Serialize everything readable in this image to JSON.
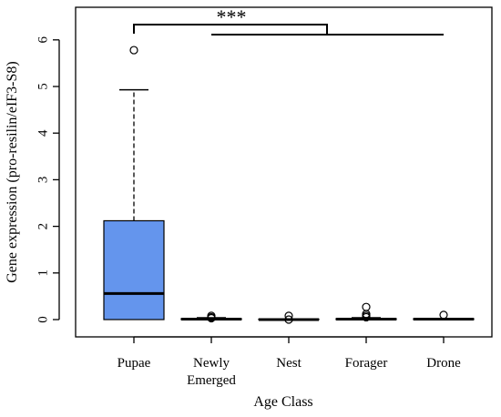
{
  "chart_data": {
    "type": "boxplot",
    "title": "",
    "xlabel": "Age Class",
    "ylabel": "Gene expression (pro-resilin/eIF3-S8)",
    "ylim": [
      -0.2,
      6.5
    ],
    "yticks": [
      0,
      1,
      2,
      3,
      4,
      5,
      6
    ],
    "box_color": "#6495ED",
    "grid": false,
    "categories": [
      {
        "label": [
          "Pupae"
        ],
        "min": 0.0,
        "q1": 0.0,
        "median": 0.56,
        "q3": 2.12,
        "max": 4.93,
        "outliers": [
          5.78
        ]
      },
      {
        "label": [
          "Newly",
          "Emerged"
        ],
        "min": 0.0,
        "q1": 0.0,
        "median": 0.01,
        "q3": 0.02,
        "max": 0.04,
        "outliers": [
          0.03,
          0.05,
          0.08
        ]
      },
      {
        "label": [
          "Nest"
        ],
        "min": 0.0,
        "q1": 0.0,
        "median": 0.0,
        "q3": 0.01,
        "max": 0.02,
        "outliers": [
          0.0,
          0.08
        ]
      },
      {
        "label": [
          "Forager"
        ],
        "min": 0.0,
        "q1": 0.0,
        "median": 0.01,
        "q3": 0.02,
        "max": 0.04,
        "outliers": [
          0.05,
          0.08,
          0.12,
          0.27
        ]
      },
      {
        "label": [
          "Drone"
        ],
        "min": 0.0,
        "q1": 0.0,
        "median": 0.01,
        "q3": 0.02,
        "max": 0.03,
        "outliers": [
          0.1
        ]
      }
    ],
    "significance": {
      "label": "***",
      "group_a": [
        0
      ],
      "group_b": [
        1,
        2,
        3,
        4
      ]
    }
  }
}
